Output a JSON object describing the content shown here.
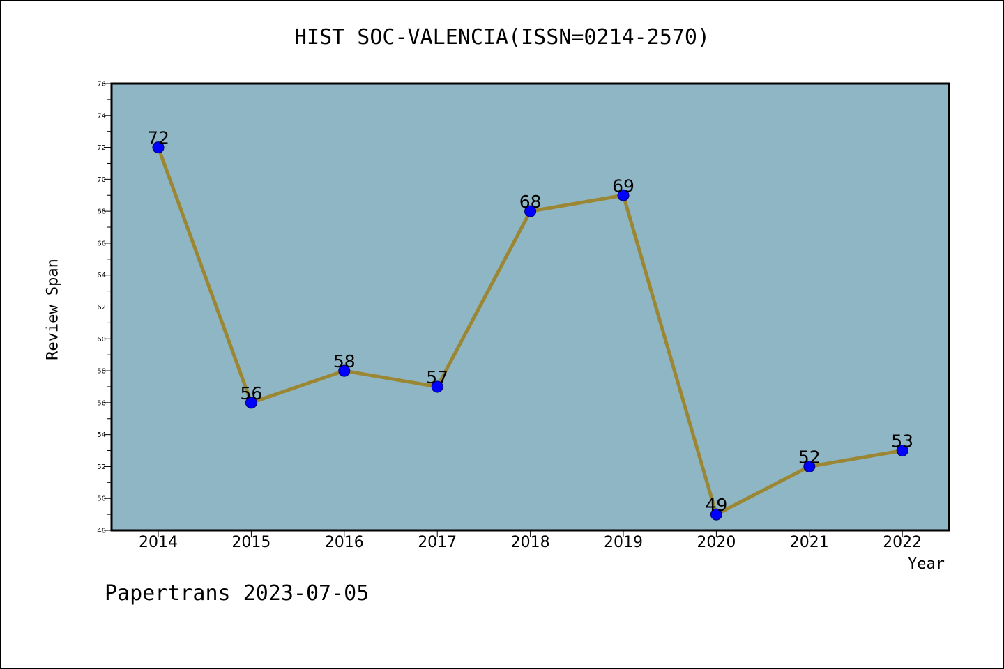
{
  "chart_data": {
    "type": "line",
    "title": "HIST SOC-VALENCIA(ISSN=0214-2570)",
    "xlabel": "Year",
    "ylabel": "Review Span",
    "categories": [
      "2014",
      "2015",
      "2016",
      "2017",
      "2018",
      "2019",
      "2020",
      "2021",
      "2022"
    ],
    "series": [
      {
        "values": [
          72,
          56,
          58,
          57,
          68,
          69,
          49,
          52,
          53
        ]
      }
    ],
    "data_labels": [
      "72",
      "56",
      "58",
      "57",
      "68",
      "69",
      "49",
      "52",
      "53"
    ],
    "ylim": [
      48,
      76
    ],
    "yticks": [
      48,
      50,
      52,
      54,
      56,
      58,
      60,
      62,
      64,
      66,
      68,
      70,
      72,
      74,
      76
    ],
    "grid": false,
    "legend": "none"
  },
  "colors": {
    "plot_background": "#8fb6c4",
    "line": "#9b8733",
    "marker": "#0000ff",
    "frame": "#000000"
  },
  "footer": "Papertrans 2023-07-05"
}
